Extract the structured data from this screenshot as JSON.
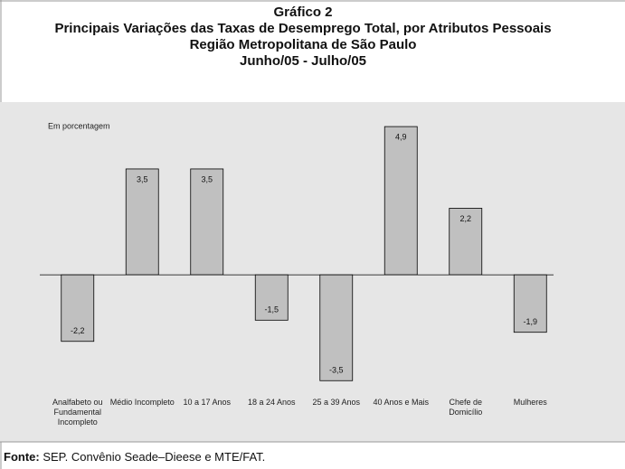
{
  "chart_data": {
    "type": "bar",
    "title_lines": [
      "Gráfico 2",
      "Principais Variações das Taxas de Desemprego Total, por Atributos Pessoais",
      "Região Metropolitana de São Paulo",
      "Junho/05 - Julho/05"
    ],
    "y_label": "Em porcentagem",
    "categories": [
      "Analfabeto ou Fundamental Incompleto",
      "Médio Incompleto",
      "10 a 17 Anos",
      "18 a 24 Anos",
      "25 a 39 Anos",
      "40 Anos e Mais",
      "Chefe de Domicílio",
      "Mulheres"
    ],
    "values": [
      -2.2,
      3.5,
      3.5,
      -1.5,
      -3.5,
      4.9,
      2.2,
      -1.9
    ],
    "value_labels": [
      "-2,2",
      "3,5",
      "3,5",
      "-1,5",
      "-3,5",
      "4,9",
      "2,2",
      "-1,9"
    ],
    "color": "#c0c0c0",
    "ylim": [
      -4,
      5.5
    ],
    "source_label": "Fonte:",
    "source": "SEP. Convênio Seade–Dieese e MTE/FAT."
  }
}
